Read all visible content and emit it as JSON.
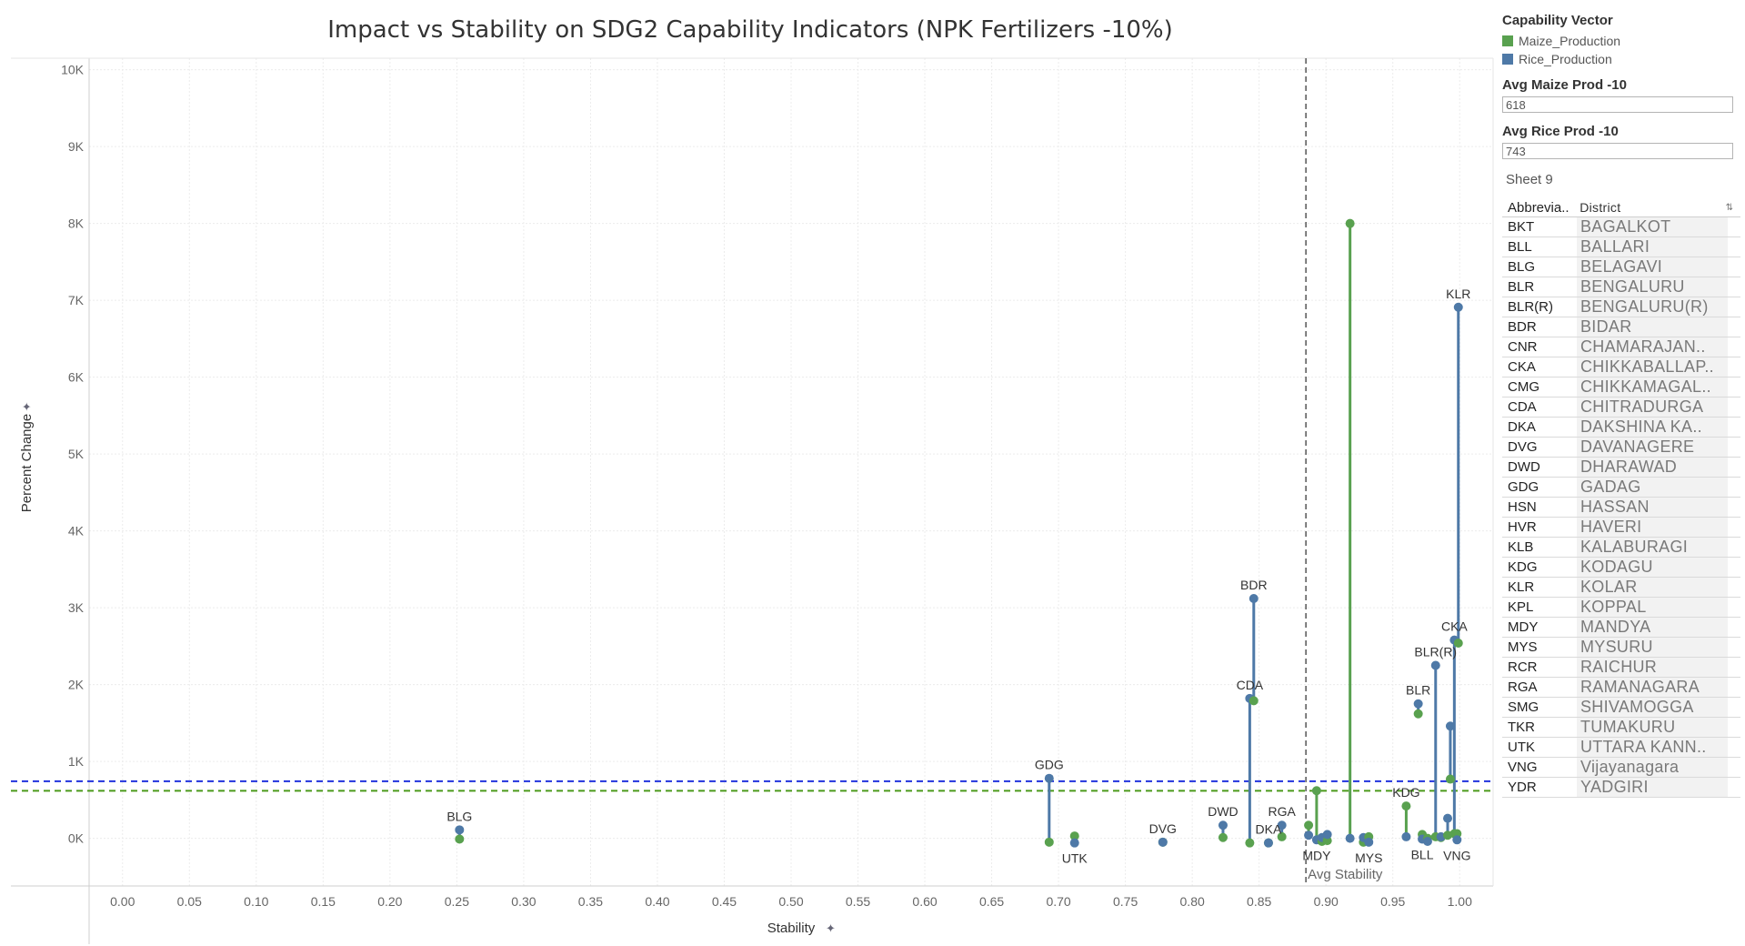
{
  "chart_data": {
    "type": "scatter",
    "title": "Impact vs Stability on SDG2 Capability Indicators (NPK Fertilizers -10%)",
    "xlabel": "Stability",
    "ylabel": "Percent Change",
    "xlim": [
      -0.025,
      1.025
    ],
    "ylim": [
      -620,
      10150
    ],
    "x_ticks": [
      0.0,
      0.05,
      0.1,
      0.15,
      0.2,
      0.25,
      0.3,
      0.35,
      0.4,
      0.45,
      0.5,
      0.55,
      0.6,
      0.65,
      0.7,
      0.75,
      0.8,
      0.85,
      0.9,
      0.95,
      1.0
    ],
    "x_tick_labels": [
      "0.00",
      "0.05",
      "0.10",
      "0.15",
      "0.20",
      "0.25",
      "0.30",
      "0.35",
      "0.40",
      "0.45",
      "0.50",
      "0.55",
      "0.60",
      "0.65",
      "0.70",
      "0.75",
      "0.80",
      "0.85",
      "0.90",
      "0.95",
      "1.00"
    ],
    "y_ticks": [
      0,
      1000,
      2000,
      3000,
      4000,
      5000,
      6000,
      7000,
      8000,
      9000,
      10000
    ],
    "y_tick_labels": [
      "0K",
      "1K",
      "2K",
      "3K",
      "4K",
      "5K",
      "6K",
      "7K",
      "8K",
      "9K",
      "10K"
    ],
    "grid": true,
    "series": [
      {
        "name": "Maize_Production",
        "color": "#59a14f"
      },
      {
        "name": "Rice_Production",
        "color": "#4e79a7"
      }
    ],
    "points": [
      {
        "x": 0.252,
        "rice": 110,
        "maize": -10
      },
      {
        "x": 0.693,
        "rice": 780,
        "maize": -50
      },
      {
        "x": 0.712,
        "rice": -60,
        "maize": 30
      },
      {
        "x": 0.778,
        "rice": -50,
        "maize": -50
      },
      {
        "x": 0.823,
        "rice": 170,
        "maize": 10
      },
      {
        "x": 0.843,
        "rice": 1820,
        "maize": -60
      },
      {
        "x": 0.846,
        "rice": 3120,
        "maize": 1790
      },
      {
        "x": 0.857,
        "rice": -60,
        "maize": -60
      },
      {
        "x": 0.867,
        "rice": 170,
        "maize": 20
      },
      {
        "x": 0.887,
        "rice": 40,
        "maize": 170
      },
      {
        "x": 0.893,
        "rice": -20,
        "maize": 620
      },
      {
        "x": 0.897,
        "rice": 10,
        "maize": -40
      },
      {
        "x": 0.901,
        "rice": 50,
        "maize": -30
      },
      {
        "x": 0.918,
        "rice": 0,
        "maize": 8000
      },
      {
        "x": 0.928,
        "rice": 10,
        "maize": -50
      },
      {
        "x": 0.932,
        "rice": -50,
        "maize": 20
      },
      {
        "x": 0.96,
        "rice": 20,
        "maize": 420
      },
      {
        "x": 0.969,
        "rice": 1750,
        "maize": 1620
      },
      {
        "x": 0.972,
        "rice": -10,
        "maize": 50
      },
      {
        "x": 0.976,
        "rice": -40,
        "maize": 0
      },
      {
        "x": 0.982,
        "rice": 2250,
        "maize": 20
      },
      {
        "x": 0.986,
        "rice": 20,
        "maize": 10
      },
      {
        "x": 0.991,
        "rice": 260,
        "maize": 40
      },
      {
        "x": 0.993,
        "rice": 1460,
        "maize": 770
      },
      {
        "x": 0.996,
        "rice": 2580,
        "maize": 60
      },
      {
        "x": 0.998,
        "rice": -20,
        "maize": 60
      },
      {
        "x": 0.999,
        "rice": 6910,
        "maize": 2540
      }
    ],
    "point_labels": [
      {
        "text": "BLG",
        "x": 0.252,
        "y": 110
      },
      {
        "text": "GDG",
        "x": 0.693,
        "y": 780
      },
      {
        "text": "UTK",
        "x": 0.712,
        "y": -60
      },
      {
        "text": "DVG",
        "x": 0.778,
        "y": -50
      },
      {
        "text": "DWD",
        "x": 0.823,
        "y": 170
      },
      {
        "text": "CDA",
        "x": 0.843,
        "y": 1820
      },
      {
        "text": "BDR",
        "x": 0.846,
        "y": 3120
      },
      {
        "text": "DKA",
        "x": 0.857,
        "y": -60
      },
      {
        "text": "RGA",
        "x": 0.867,
        "y": 170
      },
      {
        "text": "MDY",
        "x": 0.893,
        "y": -20
      },
      {
        "text": "MYS",
        "x": 0.932,
        "y": -50
      },
      {
        "text": "KDG",
        "x": 0.96,
        "y": 420
      },
      {
        "text": "BLL",
        "x": 0.972,
        "y": -10
      },
      {
        "text": "BLR",
        "x": 0.969,
        "y": 1750
      },
      {
        "text": "BLR(R)",
        "x": 0.982,
        "y": 2250
      },
      {
        "text": "CKA",
        "x": 0.996,
        "y": 2580
      },
      {
        "text": "KLR",
        "x": 0.999,
        "y": 6910
      },
      {
        "text": "VNG",
        "x": 0.998,
        "y": -20
      }
    ],
    "reference_lines": [
      {
        "axis": "y",
        "value": 743,
        "color": "#2233dd",
        "style": "dashed"
      },
      {
        "axis": "y",
        "value": 618,
        "color": "#4c9a1c",
        "style": "dashed"
      },
      {
        "axis": "x",
        "value": 0.885,
        "color": "#555555",
        "style": "dashed",
        "label": "Avg Stability"
      }
    ]
  },
  "panel": {
    "legend_title": "Capability Vector",
    "legend_items": [
      {
        "label": "Maize_Production",
        "color": "#59a14f"
      },
      {
        "label": "Rice_Production",
        "color": "#4e79a7"
      }
    ],
    "param1_title": "Avg Maize Prod -10",
    "param1_value": "618",
    "param2_title": "Avg Rice Prod -10",
    "param2_value": "743",
    "sheet_title": "Sheet 9",
    "table_headers": {
      "abbr": "Abbrevia..",
      "district": "District"
    },
    "table_rows": [
      {
        "abbr": "BKT",
        "district": "BAGALKOT"
      },
      {
        "abbr": "BLL",
        "district": "BALLARI"
      },
      {
        "abbr": "BLG",
        "district": "BELAGAVI"
      },
      {
        "abbr": "BLR",
        "district": "BENGALURU"
      },
      {
        "abbr": "BLR(R)",
        "district": "BENGALURU(R)"
      },
      {
        "abbr": "BDR",
        "district": "BIDAR"
      },
      {
        "abbr": "CNR",
        "district": "CHAMARAJAN.."
      },
      {
        "abbr": "CKA",
        "district": "CHIKKABALLAP.."
      },
      {
        "abbr": "CMG",
        "district": "CHIKKAMAGAL.."
      },
      {
        "abbr": "CDA",
        "district": "CHITRADURGA"
      },
      {
        "abbr": "DKA",
        "district": "DAKSHINA KA.."
      },
      {
        "abbr": "DVG",
        "district": "DAVANAGERE"
      },
      {
        "abbr": "DWD",
        "district": "DHARAWAD"
      },
      {
        "abbr": "GDG",
        "district": "GADAG"
      },
      {
        "abbr": "HSN",
        "district": "HASSAN"
      },
      {
        "abbr": "HVR",
        "district": "HAVERI"
      },
      {
        "abbr": "KLB",
        "district": "KALABURAGI"
      },
      {
        "abbr": "KDG",
        "district": "KODAGU"
      },
      {
        "abbr": "KLR",
        "district": "KOLAR"
      },
      {
        "abbr": "KPL",
        "district": "KOPPAL"
      },
      {
        "abbr": "MDY",
        "district": "MANDYA"
      },
      {
        "abbr": "MYS",
        "district": "MYSURU"
      },
      {
        "abbr": "RCR",
        "district": "RAICHUR"
      },
      {
        "abbr": "RGA",
        "district": "RAMANAGARA"
      },
      {
        "abbr": "SMG",
        "district": "SHIVAMOGGA"
      },
      {
        "abbr": "TKR",
        "district": "TUMAKURU"
      },
      {
        "abbr": "UTK",
        "district": "UTTARA KANN.."
      },
      {
        "abbr": "VNG",
        "district": "Vijayanagara"
      },
      {
        "abbr": "YDR",
        "district": "YADGIRI"
      }
    ]
  }
}
